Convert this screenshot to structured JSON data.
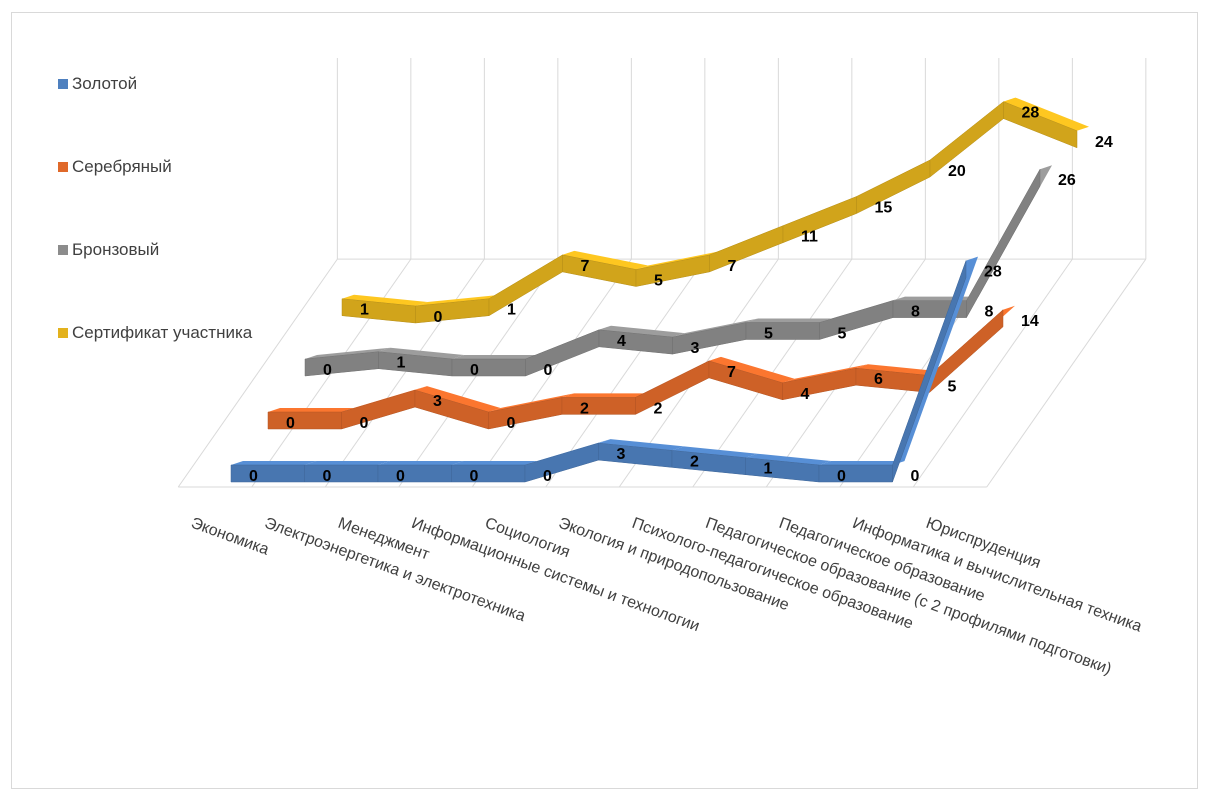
{
  "chart_data": {
    "type": "line",
    "categories": [
      "Экономика",
      "Электроэнергетика и электротехника",
      "Менеджмент",
      "Информационные системы и технологии",
      "Социология",
      "Экология и природопользование",
      "Психолого-педагогическое образование",
      "Педагогическое образование (с 2 профилями подготовки)",
      "Педагогическое образование",
      "Информатика и вычислительная техника",
      "Юриспруденция"
    ],
    "series": [
      {
        "name": "Золотой",
        "color": "#4e80bf",
        "values": [
          0,
          0,
          0,
          0,
          0,
          3,
          2,
          1,
          0,
          0,
          28
        ]
      },
      {
        "name": "Серебряный",
        "color": "#e0692a",
        "values": [
          0,
          0,
          3,
          0,
          2,
          2,
          7,
          4,
          6,
          5,
          14
        ]
      },
      {
        "name": "Бронзовый",
        "color": "#8c8c8c",
        "values": [
          0,
          1,
          0,
          0,
          4,
          3,
          5,
          5,
          8,
          8,
          26
        ]
      },
      {
        "name": "Сертификат участника",
        "color": "#e3b21d",
        "values": [
          1,
          0,
          1,
          7,
          5,
          7,
          11,
          15,
          20,
          28,
          24
        ]
      }
    ],
    "legend_position": "left",
    "grid": true
  }
}
